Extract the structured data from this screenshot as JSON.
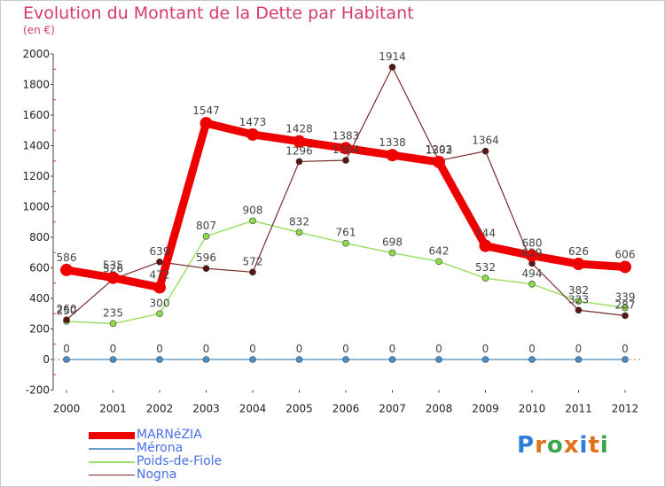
{
  "title": "Evolution du Montant de la Dette par Habitant",
  "subtitle": "(en €)",
  "brand": "Proxiti",
  "chart_data": {
    "type": "line",
    "title": "Evolution du Montant de la Dette par Habitant",
    "ylabel": "(en €)",
    "xlabel": "",
    "x": [
      "2000",
      "2001",
      "2002",
      "2003",
      "2004",
      "2005",
      "2006",
      "2007",
      "2008",
      "2009",
      "2010",
      "2011",
      "2012"
    ],
    "ylim": [
      -200,
      2000
    ],
    "yticks": [
      -200,
      0,
      200,
      400,
      600,
      800,
      1000,
      1200,
      1400,
      1600,
      1800,
      2000
    ],
    "grid": false,
    "legend_position": "bottom-left",
    "series": [
      {
        "name": "MARNéZIA",
        "color": "#ee0000",
        "values": [
          586,
          535,
          472,
          1547,
          1473,
          1428,
          1383,
          1338,
          1293,
          744,
          680,
          626,
          606
        ]
      },
      {
        "name": "Mérona",
        "color": "#6a9ec9",
        "values": [
          0,
          0,
          0,
          0,
          0,
          0,
          0,
          0,
          0,
          0,
          0,
          0,
          0
        ]
      },
      {
        "name": "Poids-de-Fiole",
        "color": "#9ce06a",
        "values": [
          250,
          235,
          300,
          807,
          908,
          832,
          761,
          698,
          642,
          532,
          494,
          382,
          339
        ]
      },
      {
        "name": "Nogna",
        "color": "#7a2a2a",
        "values": [
          260,
          526,
          639,
          596,
          572,
          1296,
          1304,
          1914,
          1302,
          1364,
          629,
          323,
          287
        ]
      }
    ]
  }
}
